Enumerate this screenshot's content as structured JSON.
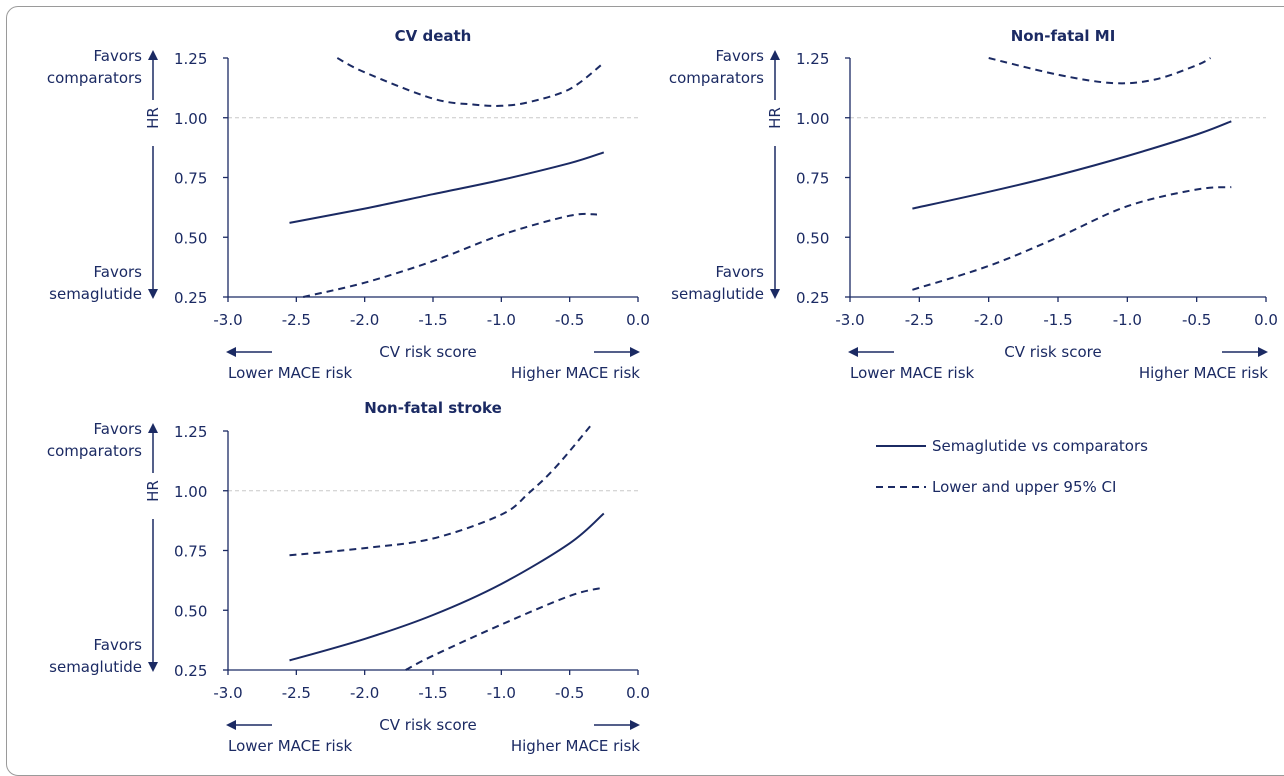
{
  "colors": {
    "series": "#1b2a63",
    "gridline": "#c8c8c8",
    "frame": "#9a9a9a"
  },
  "chart_data": [
    {
      "type": "line",
      "title": "CV death",
      "ylabel": "HR",
      "xlabel": "CV risk score",
      "x_left_label": "Lower MACE risk",
      "x_right_label": "Higher MACE risk",
      "y_top_label": [
        "Favors",
        "comparators"
      ],
      "y_bottom_label": [
        "Favors",
        "semaglutide"
      ],
      "xlim": [
        -3.0,
        0.0
      ],
      "ylim": [
        0.25,
        1.25
      ],
      "xticks": [
        "-3.0",
        "-2.5",
        "-2.0",
        "-1.5",
        "-1.0",
        "-0.5",
        "0.0"
      ],
      "yticks": [
        "1.25",
        "1.00",
        "0.75",
        "0.50",
        "0.25"
      ],
      "reference_line_y": 1.0,
      "series": [
        {
          "style": "solid",
          "x": [
            -2.55,
            -2.0,
            -1.5,
            -1.0,
            -0.5,
            -0.25
          ],
          "y": [
            0.56,
            0.62,
            0.68,
            0.74,
            0.81,
            0.855
          ]
        },
        {
          "style": "dashed",
          "x": [
            -2.2,
            -2.0,
            -1.5,
            -1.2,
            -1.0,
            -0.8,
            -0.5,
            -0.25
          ],
          "y": [
            1.25,
            1.19,
            1.08,
            1.055,
            1.05,
            1.065,
            1.12,
            1.23
          ]
        },
        {
          "style": "dashed",
          "x": [
            -2.45,
            -2.0,
            -1.5,
            -1.0,
            -0.5,
            -0.3
          ],
          "y": [
            0.25,
            0.31,
            0.4,
            0.51,
            0.59,
            0.595
          ]
        }
      ]
    },
    {
      "type": "line",
      "title": "Non-fatal MI",
      "ylabel": "HR",
      "xlabel": "CV risk score",
      "x_left_label": "Lower MACE risk",
      "x_right_label": "Higher MACE risk",
      "y_top_label": [
        "Favors",
        "comparators"
      ],
      "y_bottom_label": [
        "Favors",
        "semaglutide"
      ],
      "xlim": [
        -3.0,
        0.0
      ],
      "ylim": [
        0.25,
        1.25
      ],
      "xticks": [
        "-3.0",
        "-2.5",
        "-2.0",
        "-1.5",
        "-1.0",
        "-0.5",
        "0.0"
      ],
      "yticks": [
        "1.25",
        "1.00",
        "0.75",
        "0.50",
        "0.25"
      ],
      "reference_line_y": 1.0,
      "series": [
        {
          "style": "solid",
          "x": [
            -2.55,
            -2.0,
            -1.5,
            -1.0,
            -0.5,
            -0.25
          ],
          "y": [
            0.62,
            0.69,
            0.76,
            0.84,
            0.93,
            0.985
          ]
        },
        {
          "style": "dashed",
          "x": [
            -2.0,
            -1.5,
            -1.1,
            -0.8,
            -0.5,
            -0.4
          ],
          "y": [
            1.25,
            1.18,
            1.145,
            1.16,
            1.22,
            1.25
          ]
        },
        {
          "style": "dashed",
          "x": [
            -2.55,
            -2.0,
            -1.5,
            -1.0,
            -0.5,
            -0.25
          ],
          "y": [
            0.28,
            0.38,
            0.5,
            0.63,
            0.7,
            0.71
          ]
        }
      ]
    },
    {
      "type": "line",
      "title": "Non-fatal stroke",
      "ylabel": "HR",
      "xlabel": "CV risk score",
      "x_left_label": "Lower MACE risk",
      "x_right_label": "Higher MACE risk",
      "y_top_label": [
        "Favors",
        "comparators"
      ],
      "y_bottom_label": [
        "Favors",
        "semaglutide"
      ],
      "xlim": [
        -3.0,
        0.0
      ],
      "ylim": [
        0.25,
        1.25
      ],
      "xticks": [
        "-3.0",
        "-2.5",
        "-2.0",
        "-1.5",
        "-1.0",
        "-0.5",
        "0.0"
      ],
      "yticks": [
        "1.25",
        "1.00",
        "0.75",
        "0.50",
        "0.25"
      ],
      "reference_line_y": 1.0,
      "series": [
        {
          "style": "solid",
          "x": [
            -2.55,
            -2.0,
            -1.5,
            -1.0,
            -0.5,
            -0.25
          ],
          "y": [
            0.29,
            0.38,
            0.48,
            0.61,
            0.78,
            0.905
          ]
        },
        {
          "style": "dashed",
          "x": [
            -2.55,
            -2.0,
            -1.5,
            -1.0,
            -0.8,
            -0.6,
            -0.35
          ],
          "y": [
            0.73,
            0.76,
            0.8,
            0.9,
            0.99,
            1.1,
            1.27
          ]
        },
        {
          "style": "dashed",
          "x": [
            -1.7,
            -1.5,
            -1.0,
            -0.5,
            -0.25
          ],
          "y": [
            0.25,
            0.31,
            0.44,
            0.56,
            0.595
          ]
        }
      ]
    }
  ],
  "legend": {
    "items": [
      {
        "label": "Semaglutide vs comparators",
        "style": "solid"
      },
      {
        "label": "Lower and upper 95% CI",
        "style": "dashed"
      }
    ]
  }
}
